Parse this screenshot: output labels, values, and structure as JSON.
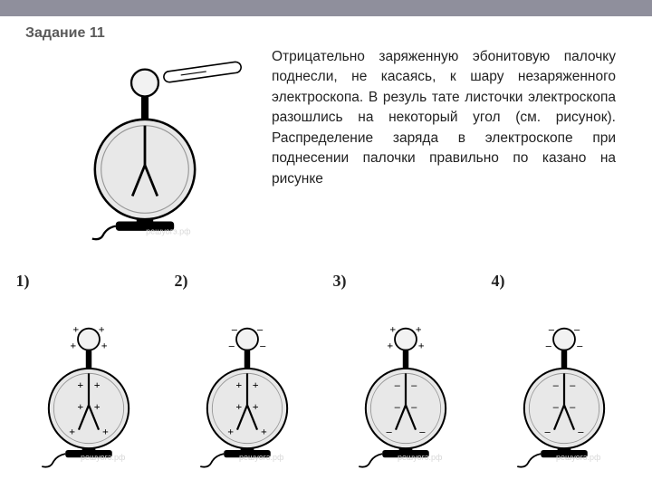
{
  "colors": {
    "stroke": "#000",
    "fill": "#e8e8e8",
    "ball": "#f2f2f2",
    "banner": "#8f8f9c",
    "title": "#595959"
  },
  "title": "Задание 11",
  "intro_text": "Отрицательно заряженную эбонитовую палочку поднесли, не касаясь, к шару незаряженного электроскопа. В резуль тате листочки электроскопа разошлись на некоторый угол (см. рисунок). Распределение заряда в электроскопе при поднесении палочки правильно по казано на рисунке",
  "watermark": "решуогэ.рф",
  "electroscope": {
    "dial_r": 48,
    "ball_r": 13,
    "stem_len": 22,
    "leaf_angle_deg": 22,
    "leaf_len": 32,
    "base_w": 56,
    "base_h": 9,
    "foot_h": 7
  },
  "rod": {
    "len": 86,
    "thick": 12
  },
  "options": [
    {
      "num": "1)",
      "ball": [
        "+",
        "+",
        "+",
        "+"
      ],
      "leaves": [
        "+",
        "+",
        "+",
        "+",
        "+",
        "+"
      ]
    },
    {
      "num": "2)",
      "ball": [
        "–",
        "–",
        "–",
        "–"
      ],
      "leaves": [
        "+",
        "+",
        "+",
        "+",
        "+",
        "+"
      ]
    },
    {
      "num": "3)",
      "ball": [
        "+",
        "+",
        "+",
        "+"
      ],
      "leaves": [
        "–",
        "–",
        "–",
        "–",
        "–",
        "–"
      ]
    },
    {
      "num": "4)",
      "ball": [
        "–",
        "–",
        "–",
        "–"
      ],
      "leaves": [
        "–",
        "–",
        "–",
        "–",
        "–",
        "–"
      ]
    }
  ]
}
